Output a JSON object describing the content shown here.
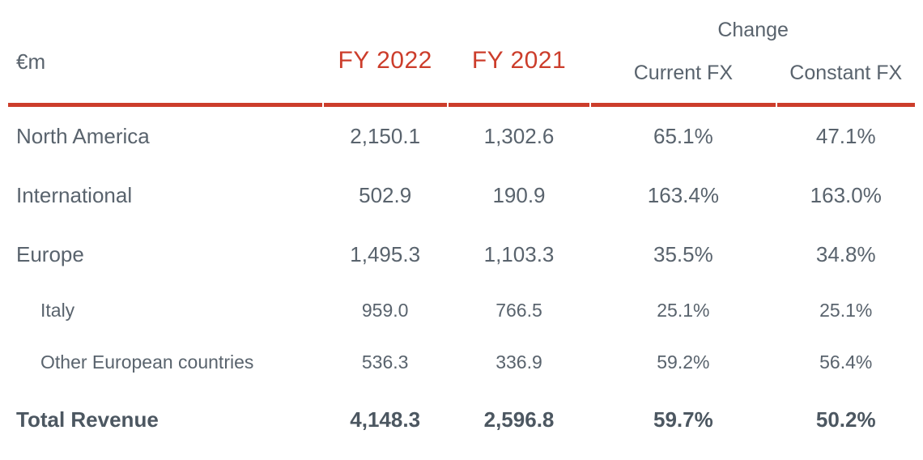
{
  "colors": {
    "accent_red": "#cc3d2b",
    "text_grey": "#59636d",
    "total_text": "#4c5761",
    "background": "#ffffff"
  },
  "table": {
    "unit_label": "€m",
    "change_group_label": "Change",
    "columns": [
      {
        "key": "fy2022",
        "label": "FY 2022"
      },
      {
        "key": "fy2021",
        "label": "FY 2021"
      },
      {
        "key": "current_fx",
        "label": "Current FX"
      },
      {
        "key": "constant_fx",
        "label": "Constant FX"
      }
    ],
    "rows": [
      {
        "label": "North America",
        "fy2022": "2,150.1",
        "fy2021": "1,302.6",
        "current_fx": "65.1%",
        "constant_fx": "47.1%"
      },
      {
        "label": "International",
        "fy2022": "502.9",
        "fy2021": "190.9",
        "current_fx": "163.4%",
        "constant_fx": "163.0%"
      },
      {
        "label": "Europe",
        "fy2022": "1,495.3",
        "fy2021": "1,103.3",
        "current_fx": "35.5%",
        "constant_fx": "34.8%"
      },
      {
        "label": "Italy",
        "fy2022": "959.0",
        "fy2021": "766.5",
        "current_fx": "25.1%",
        "constant_fx": "25.1%"
      },
      {
        "label": "Other European countries",
        "fy2022": "536.3",
        "fy2021": "336.9",
        "current_fx": "59.2%",
        "constant_fx": "56.4%"
      },
      {
        "label": "Total Revenue",
        "fy2022": "4,148.3",
        "fy2021": "2,596.8",
        "current_fx": "59.7%",
        "constant_fx": "50.2%"
      }
    ]
  },
  "chart_data": {
    "type": "table",
    "columns": [
      "€m",
      "FY 2022",
      "FY 2021",
      "Change Current FX",
      "Change Constant FX"
    ],
    "rows": [
      [
        "North America",
        2150.1,
        1302.6,
        "65.1%",
        "47.1%"
      ],
      [
        "International",
        502.9,
        190.9,
        "163.4%",
        "163.0%"
      ],
      [
        "Europe",
        1495.3,
        1103.3,
        "35.5%",
        "34.8%"
      ],
      [
        "Italy",
        959.0,
        766.5,
        "25.1%",
        "25.1%"
      ],
      [
        "Other European countries",
        536.3,
        336.9,
        "59.2%",
        "56.4%"
      ],
      [
        "Total Revenue",
        4148.3,
        2596.8,
        "59.7%",
        "50.2%"
      ]
    ]
  }
}
